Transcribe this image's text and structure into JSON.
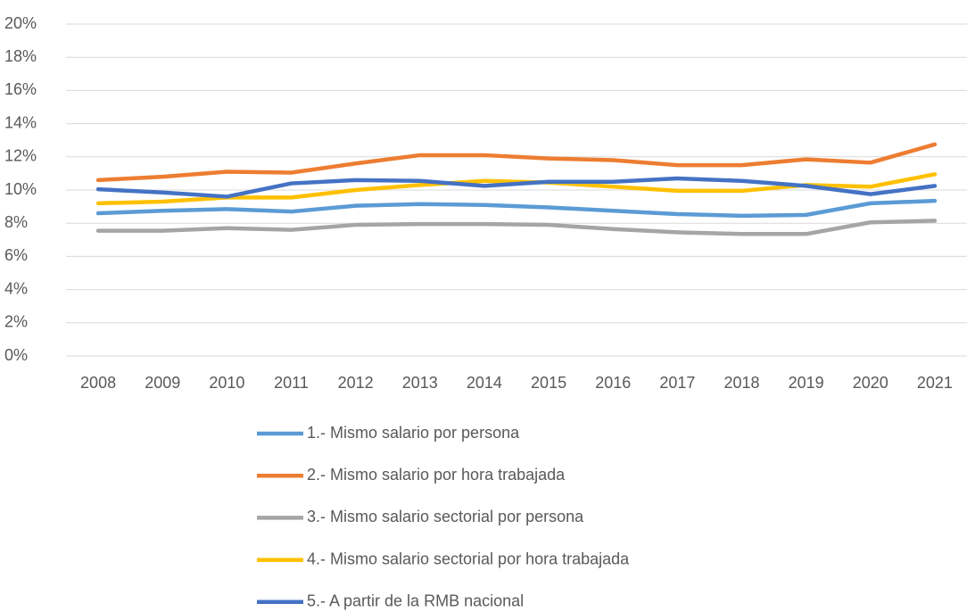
{
  "chart_data": {
    "type": "line",
    "categories": [
      "2008",
      "2009",
      "2010",
      "2011",
      "2012",
      "2013",
      "2014",
      "2015",
      "2016",
      "2017",
      "2018",
      "2019",
      "2020",
      "2021"
    ],
    "series": [
      {
        "name": "1.- Mismo salario por persona",
        "color": "#5b9bd5",
        "values": [
          8.6,
          8.75,
          8.85,
          8.7,
          9.05,
          9.15,
          9.1,
          8.95,
          8.75,
          8.55,
          8.45,
          8.5,
          9.2,
          9.35
        ]
      },
      {
        "name": "2.- Mismo salario por hora trabajada",
        "color": "#ed7d31",
        "values": [
          10.6,
          10.8,
          11.1,
          11.05,
          11.6,
          12.1,
          12.1,
          11.9,
          11.8,
          11.5,
          11.5,
          11.85,
          11.65,
          12.75
        ]
      },
      {
        "name": "3.- Mismo salario sectorial por persona",
        "color": "#a5a5a5",
        "values": [
          7.55,
          7.55,
          7.7,
          7.6,
          7.9,
          7.95,
          7.95,
          7.9,
          7.65,
          7.45,
          7.35,
          7.35,
          8.05,
          8.15
        ]
      },
      {
        "name": "4.- Mismo salario sectorial por hora trabajada",
        "color": "#ffc000",
        "values": [
          9.2,
          9.3,
          9.55,
          9.55,
          10.0,
          10.3,
          10.55,
          10.45,
          10.2,
          9.95,
          9.95,
          10.3,
          10.2,
          10.95
        ]
      },
      {
        "name": "5.- A partir de la RMB nacional",
        "color": "#4472c4",
        "values": [
          10.05,
          9.85,
          9.6,
          10.4,
          10.6,
          10.55,
          10.25,
          10.5,
          10.5,
          10.7,
          10.55,
          10.25,
          9.75,
          10.25
        ]
      }
    ],
    "ylim": [
      0,
      20
    ],
    "yticks": [
      {
        "value": 0,
        "label": "0%"
      },
      {
        "value": 2,
        "label": "2%"
      },
      {
        "value": 4,
        "label": "4%"
      },
      {
        "value": 6,
        "label": "6%"
      },
      {
        "value": 8,
        "label": "8%"
      },
      {
        "value": 10,
        "label": "10%"
      },
      {
        "value": 12,
        "label": "12%"
      },
      {
        "value": 14,
        "label": "14%"
      },
      {
        "value": 16,
        "label": "16%"
      },
      {
        "value": 18,
        "label": "18%"
      },
      {
        "value": 20,
        "label": "20%"
      }
    ],
    "grid": true
  }
}
